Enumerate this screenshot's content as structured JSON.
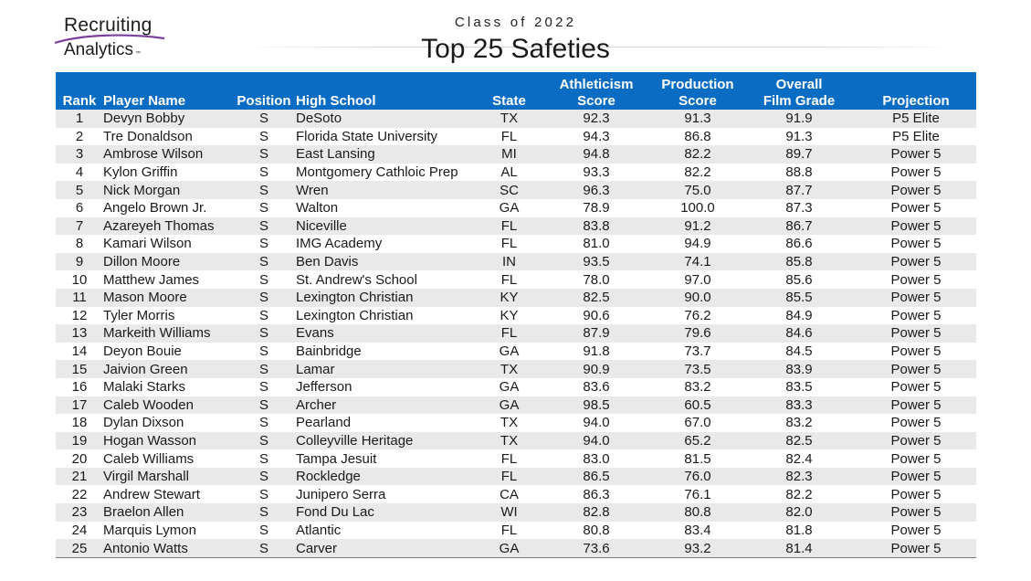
{
  "logo": {
    "line1": "Recruiting",
    "line2": "Analytics",
    "tm": "™"
  },
  "subtitle": "Class of 2022",
  "title": "Top 25 Safeties",
  "colors": {
    "header_bg": "#0b6cc4",
    "stripe": "#e9e9e9",
    "logo_swoosh": "#7b3fa0"
  },
  "table": {
    "headers": {
      "rank": "Rank",
      "player": "Player Name",
      "position": "Position",
      "school": "High School",
      "state": "State",
      "athleticism_l1": "Athleticism",
      "athleticism_l2": "Score",
      "production_l1": "Production",
      "production_l2": "Score",
      "overall_l1": "Overall",
      "overall_l2": "Film Grade",
      "projection": "Projection"
    },
    "rows": [
      {
        "rank": "1",
        "name": "Devyn Bobby",
        "pos": "S",
        "school": "DeSoto",
        "state": "TX",
        "ath": "92.3",
        "prod": "91.3",
        "film": "91.9",
        "proj": "P5 Elite"
      },
      {
        "rank": "2",
        "name": "Tre Donaldson",
        "pos": "S",
        "school": "Florida State University",
        "state": "FL",
        "ath": "94.3",
        "prod": "86.8",
        "film": "91.3",
        "proj": "P5 Elite"
      },
      {
        "rank": "3",
        "name": "Ambrose Wilson",
        "pos": "S",
        "school": "East Lansing",
        "state": "MI",
        "ath": "94.8",
        "prod": "82.2",
        "film": "89.7",
        "proj": "Power 5"
      },
      {
        "rank": "4",
        "name": "Kylon Griffin",
        "pos": "S",
        "school": "Montgomery Cathloic Prep",
        "state": "AL",
        "ath": "93.3",
        "prod": "82.2",
        "film": "88.8",
        "proj": "Power 5"
      },
      {
        "rank": "5",
        "name": "Nick Morgan",
        "pos": "S",
        "school": "Wren",
        "state": "SC",
        "ath": "96.3",
        "prod": "75.0",
        "film": "87.7",
        "proj": "Power 5"
      },
      {
        "rank": "6",
        "name": "Angelo Brown Jr.",
        "pos": "S",
        "school": "Walton",
        "state": "GA",
        "ath": "78.9",
        "prod": "100.0",
        "film": "87.3",
        "proj": "Power 5"
      },
      {
        "rank": "7",
        "name": "Azareyeh Thomas",
        "pos": "S",
        "school": "Niceville",
        "state": "FL",
        "ath": "83.8",
        "prod": "91.2",
        "film": "86.7",
        "proj": "Power 5"
      },
      {
        "rank": "8",
        "name": "Kamari Wilson",
        "pos": "S",
        "school": "IMG Academy",
        "state": "FL",
        "ath": "81.0",
        "prod": "94.9",
        "film": "86.6",
        "proj": "Power 5"
      },
      {
        "rank": "9",
        "name": "Dillon Moore",
        "pos": "S",
        "school": "Ben Davis",
        "state": "IN",
        "ath": "93.5",
        "prod": "74.1",
        "film": "85.8",
        "proj": "Power 5"
      },
      {
        "rank": "10",
        "name": "Matthew James",
        "pos": "S",
        "school": "St. Andrew's School",
        "state": "FL",
        "ath": "78.0",
        "prod": "97.0",
        "film": "85.6",
        "proj": "Power 5"
      },
      {
        "rank": "11",
        "name": "Mason Moore",
        "pos": "S",
        "school": "Lexington Christian",
        "state": "KY",
        "ath": "82.5",
        "prod": "90.0",
        "film": "85.5",
        "proj": "Power 5"
      },
      {
        "rank": "12",
        "name": "Tyler Morris",
        "pos": "S",
        "school": "Lexington Christian",
        "state": "KY",
        "ath": "90.6",
        "prod": "76.2",
        "film": "84.9",
        "proj": "Power 5"
      },
      {
        "rank": "13",
        "name": "Markeith Williams",
        "pos": "S",
        "school": "Evans",
        "state": "FL",
        "ath": "87.9",
        "prod": "79.6",
        "film": "84.6",
        "proj": "Power 5"
      },
      {
        "rank": "14",
        "name": "Deyon Bouie",
        "pos": "S",
        "school": "Bainbridge",
        "state": "GA",
        "ath": "91.8",
        "prod": "73.7",
        "film": "84.5",
        "proj": "Power 5"
      },
      {
        "rank": "15",
        "name": "Jaivion Green",
        "pos": "S",
        "school": "Lamar",
        "state": "TX",
        "ath": "90.9",
        "prod": "73.5",
        "film": "83.9",
        "proj": "Power 5"
      },
      {
        "rank": "16",
        "name": "Malaki Starks",
        "pos": "S",
        "school": "Jefferson",
        "state": "GA",
        "ath": "83.6",
        "prod": "83.2",
        "film": "83.5",
        "proj": "Power 5"
      },
      {
        "rank": "17",
        "name": "Caleb Wooden",
        "pos": "S",
        "school": "Archer",
        "state": "GA",
        "ath": "98.5",
        "prod": "60.5",
        "film": "83.3",
        "proj": "Power 5"
      },
      {
        "rank": "18",
        "name": "Dylan Dixson",
        "pos": "S",
        "school": "Pearland",
        "state": "TX",
        "ath": "94.0",
        "prod": "67.0",
        "film": "83.2",
        "proj": "Power 5"
      },
      {
        "rank": "19",
        "name": "Hogan Wasson",
        "pos": "S",
        "school": "Colleyville Heritage",
        "state": "TX",
        "ath": "94.0",
        "prod": "65.2",
        "film": "82.5",
        "proj": "Power 5"
      },
      {
        "rank": "20",
        "name": "Caleb Williams",
        "pos": "S",
        "school": "Tampa Jesuit",
        "state": "FL",
        "ath": "83.0",
        "prod": "81.5",
        "film": "82.4",
        "proj": "Power 5"
      },
      {
        "rank": "21",
        "name": "Virgil Marshall",
        "pos": "S",
        "school": "Rockledge",
        "state": "FL",
        "ath": "86.5",
        "prod": "76.0",
        "film": "82.3",
        "proj": "Power 5"
      },
      {
        "rank": "22",
        "name": "Andrew Stewart",
        "pos": "S",
        "school": "Junipero Serra",
        "state": "CA",
        "ath": "86.3",
        "prod": "76.1",
        "film": "82.2",
        "proj": "Power 5"
      },
      {
        "rank": "23",
        "name": "Braelon Allen",
        "pos": "S",
        "school": "Fond Du Lac",
        "state": "WI",
        "ath": "82.8",
        "prod": "80.8",
        "film": "82.0",
        "proj": "Power 5"
      },
      {
        "rank": "24",
        "name": "Marquis Lymon",
        "pos": "S",
        "school": "Atlantic",
        "state": "FL",
        "ath": "80.8",
        "prod": "83.4",
        "film": "81.8",
        "proj": "Power 5"
      },
      {
        "rank": "25",
        "name": "Antonio Watts",
        "pos": "S",
        "school": "Carver",
        "state": "GA",
        "ath": "73.6",
        "prod": "93.2",
        "film": "81.4",
        "proj": "Power 5"
      }
    ]
  }
}
